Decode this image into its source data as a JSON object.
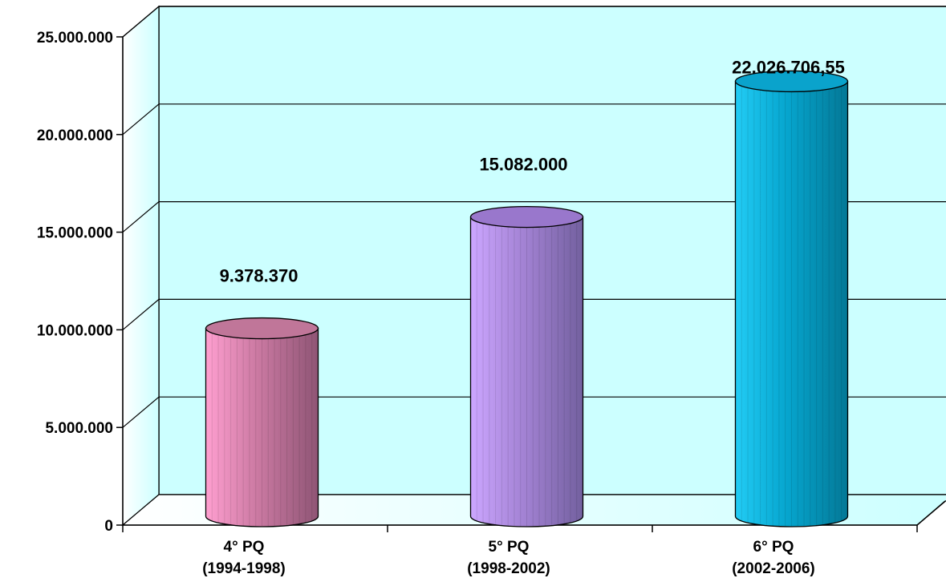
{
  "chart_data": {
    "type": "bar",
    "style": "3d-cylinder",
    "categories": [
      [
        "4° PQ",
        "(1994-1998)"
      ],
      [
        "5° PQ",
        "(1998-2002)"
      ],
      [
        "6° PQ",
        "(2002-2006)"
      ]
    ],
    "values": [
      9378370,
      15082000,
      22026706.55
    ],
    "data_labels": [
      "9.378.370",
      "15.082.000",
      "22.026.706,55"
    ],
    "ylim": [
      0,
      25000000
    ],
    "yticks": [
      0,
      5000000,
      10000000,
      15000000,
      20000000,
      25000000
    ],
    "ytick_labels": [
      "0",
      "5.000.000",
      "10.000.000",
      "15.000.000",
      "20.000.000",
      "25.000.000"
    ],
    "grid": true,
    "legend": "none",
    "colors": {
      "bars": [
        {
          "light": "#ff9fd0",
          "mid": "#cc7aa3",
          "dark": "#8f5575",
          "top": "#c07699"
        },
        {
          "light": "#cca6ff",
          "mid": "#a584d6",
          "dark": "#73609f",
          "top": "#9977cc"
        },
        {
          "light": "#22ccf5",
          "mid": "#06a6cf",
          "dark": "#047896",
          "top": "#0aa3cc"
        }
      ],
      "wall": "#ccffff",
      "floor_light": "#ffffff",
      "floor_dark": "#ccffff"
    }
  }
}
